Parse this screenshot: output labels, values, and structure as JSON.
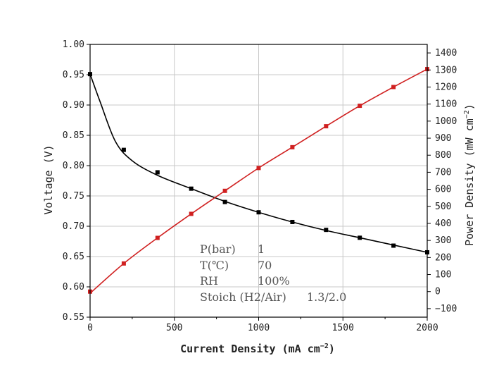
{
  "chart_data": {
    "type": "line",
    "xlabel": "Current Density (mA cm",
    "xlabel_sup": "−2",
    "xlabel_end": ")",
    "ylabel_left": "Voltage (V)",
    "ylabel_right": "Power Density (mW cm",
    "ylabel_right_sup": "−2",
    "ylabel_right_end": ")",
    "xlim": [
      0,
      2000
    ],
    "ylim_left": [
      0.55,
      1.0
    ],
    "ylim_right": [
      -150,
      1450
    ],
    "x_ticks": [
      "0",
      "500",
      "1000",
      "1500",
      "2000"
    ],
    "y_left_ticks": [
      "0.55",
      "0.60",
      "0.65",
      "0.70",
      "0.75",
      "0.80",
      "0.85",
      "0.90",
      "0.95",
      "1.00"
    ],
    "y_right_ticks": [
      "−100",
      "0",
      "100",
      "200",
      "300",
      "400",
      "500",
      "600",
      "700",
      "800",
      "900",
      "1000",
      "1100",
      "1200",
      "1300",
      "1400"
    ],
    "grid": true,
    "series": [
      {
        "axis": "left",
        "color": "#000000",
        "x": [
          0,
          200,
          400,
          600,
          800,
          1000,
          1200,
          1400,
          1600,
          1800,
          2000
        ],
        "values": [
          0.951,
          0.826,
          0.789,
          0.762,
          0.74,
          0.723,
          0.707,
          0.694,
          0.681,
          0.668,
          0.657
        ]
      },
      {
        "axis": "right",
        "color": "#d02020",
        "x": [
          0,
          200,
          400,
          600,
          800,
          1000,
          1200,
          1400,
          1600,
          1800,
          2000
        ],
        "values": [
          0,
          165,
          315,
          456,
          591,
          725,
          847,
          970,
          1090,
          1200,
          1305
        ]
      }
    ],
    "annotations": [
      {
        "label": "P(bar)",
        "value": "1"
      },
      {
        "label": "T(℃)",
        "value": "70"
      },
      {
        "label": "RH",
        "value": "100%"
      },
      {
        "label": "Stoich (H2/Air)",
        "value": "1.3/2.0"
      }
    ]
  }
}
